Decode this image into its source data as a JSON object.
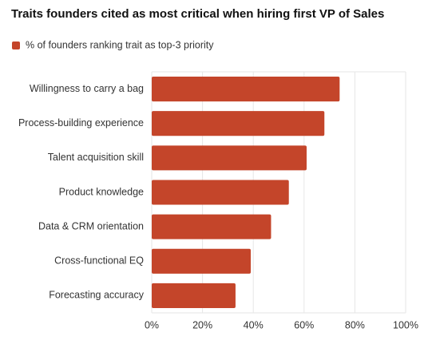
{
  "chart_data": {
    "type": "bar",
    "orientation": "horizontal",
    "title": "Traits founders cited as most critical when hiring first VP of Sales",
    "categories": [
      "Willingness to carry a bag",
      "Process-building experience",
      "Talent acquisition skill",
      "Product knowledge",
      "Data & CRM orientation",
      "Cross-functional EQ",
      "Forecasting accuracy"
    ],
    "series": [
      {
        "name": "% of founders ranking trait as top-3 priority",
        "color": "#c4452a",
        "values": [
          74,
          68,
          61,
          54,
          47,
          39,
          33
        ]
      }
    ],
    "xlim": [
      0,
      100
    ],
    "xticks": [
      {
        "value": 0,
        "label": "0%"
      },
      {
        "value": 20,
        "label": "20%"
      },
      {
        "value": 40,
        "label": "40%"
      },
      {
        "value": 60,
        "label": "60%"
      },
      {
        "value": 80,
        "label": "80%"
      },
      {
        "value": 100,
        "label": "100%"
      }
    ],
    "grid": true,
    "legend": "top-left"
  }
}
